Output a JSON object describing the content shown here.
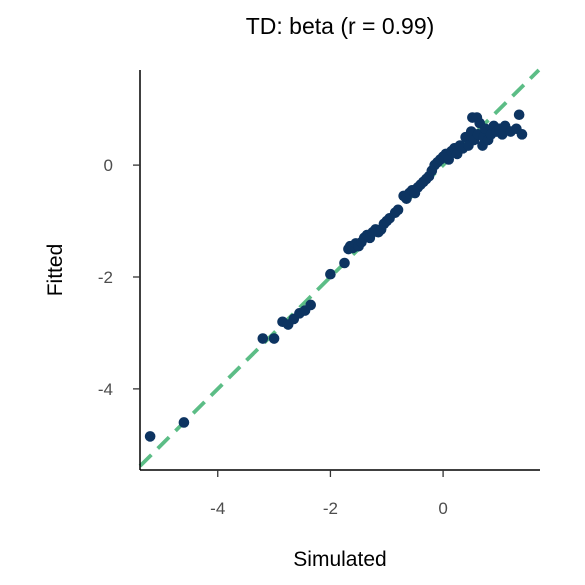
{
  "chart_data": {
    "type": "scatter",
    "title": "TD: beta (r = 0.99)",
    "xlabel": "Simulated",
    "ylabel": "Fitted",
    "xlim": [
      -5.38,
      1.72
    ],
    "ylim": [
      -5.45,
      1.7
    ],
    "xticks": [
      -4,
      -2,
      0
    ],
    "xtick_labels": [
      "-4",
      "-2",
      "0"
    ],
    "yticks": [
      -4,
      -2,
      0
    ],
    "ytick_labels": [
      "-4",
      "-2",
      "0"
    ],
    "grid": false,
    "legend": "none",
    "point_color": "#0d3461",
    "line_color": "#5cbd86",
    "reference_line": {
      "type": "identity",
      "slope": 1,
      "intercept": 0
    },
    "points": [
      [
        -5.2,
        -4.85
      ],
      [
        -4.6,
        -4.6
      ],
      [
        -3.2,
        -3.1
      ],
      [
        -3.0,
        -3.1
      ],
      [
        -2.85,
        -2.8
      ],
      [
        -2.75,
        -2.85
      ],
      [
        -2.65,
        -2.75
      ],
      [
        -2.55,
        -2.65
      ],
      [
        -2.45,
        -2.6
      ],
      [
        -2.35,
        -2.5
      ],
      [
        -2.0,
        -1.95
      ],
      [
        -1.75,
        -1.75
      ],
      [
        -1.68,
        -1.5
      ],
      [
        -1.65,
        -1.45
      ],
      [
        -1.6,
        -1.48
      ],
      [
        -1.55,
        -1.4
      ],
      [
        -1.5,
        -1.45
      ],
      [
        -1.45,
        -1.38
      ],
      [
        -1.4,
        -1.3
      ],
      [
        -1.35,
        -1.25
      ],
      [
        -1.3,
        -1.3
      ],
      [
        -1.25,
        -1.2
      ],
      [
        -1.2,
        -1.15
      ],
      [
        -1.15,
        -1.2
      ],
      [
        -1.1,
        -1.15
      ],
      [
        -1.05,
        -1.05
      ],
      [
        -1.0,
        -1.0
      ],
      [
        -0.95,
        -0.95
      ],
      [
        -0.85,
        -0.85
      ],
      [
        -0.8,
        -0.8
      ],
      [
        -0.7,
        -0.55
      ],
      [
        -0.65,
        -0.6
      ],
      [
        -0.6,
        -0.5
      ],
      [
        -0.55,
        -0.45
      ],
      [
        -0.5,
        -0.5
      ],
      [
        -0.45,
        -0.4
      ],
      [
        -0.4,
        -0.35
      ],
      [
        -0.35,
        -0.3
      ],
      [
        -0.3,
        -0.25
      ],
      [
        -0.25,
        -0.2
      ],
      [
        -0.2,
        -0.1
      ],
      [
        -0.15,
        0.0
      ],
      [
        -0.1,
        0.05
      ],
      [
        -0.05,
        0.1
      ],
      [
        0.0,
        0.15
      ],
      [
        0.05,
        0.2
      ],
      [
        0.1,
        0.1
      ],
      [
        0.15,
        0.25
      ],
      [
        0.2,
        0.3
      ],
      [
        0.25,
        0.2
      ],
      [
        0.3,
        0.35
      ],
      [
        0.35,
        0.3
      ],
      [
        0.4,
        0.5
      ],
      [
        0.45,
        0.35
      ],
      [
        0.5,
        0.6
      ],
      [
        0.52,
        0.85
      ],
      [
        0.55,
        0.45
      ],
      [
        0.6,
        0.85
      ],
      [
        0.62,
        0.55
      ],
      [
        0.65,
        0.75
      ],
      [
        0.7,
        0.35
      ],
      [
        0.72,
        0.5
      ],
      [
        0.75,
        0.65
      ],
      [
        0.8,
        0.45
      ],
      [
        0.85,
        0.55
      ],
      [
        0.9,
        0.7
      ],
      [
        0.95,
        0.6
      ],
      [
        1.0,
        0.65
      ],
      [
        1.05,
        0.55
      ],
      [
        1.1,
        0.7
      ],
      [
        1.2,
        0.6
      ],
      [
        1.3,
        0.65
      ],
      [
        1.35,
        0.9
      ],
      [
        1.4,
        0.55
      ]
    ]
  }
}
